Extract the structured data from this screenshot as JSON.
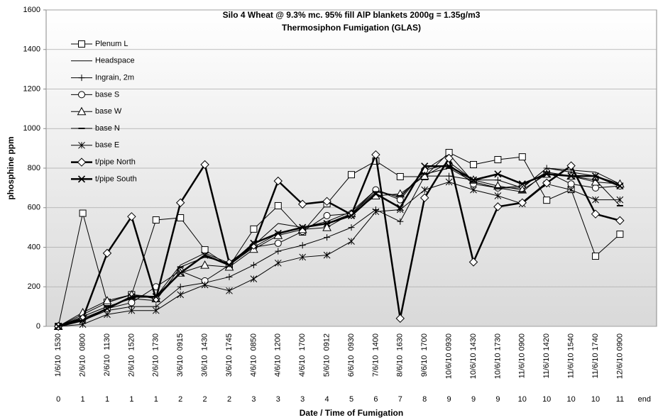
{
  "chart_data": {
    "type": "line",
    "title": "Silo 4 Wheat @ 9.3% mc. 95% fill AlP blankets 2000g = 1.35g/m3",
    "subtitle": "Thermosiphon Fumigation (GLAS)",
    "y_label": "phosphine ppm",
    "x_label": "Date / Time of Fumigation",
    "categories": [
      "1/6/10  1530",
      "2/6/10  0800",
      "2/6/10  1130",
      "2/6/10  1520",
      "2/6/10  1730",
      "3/6/10  0915",
      "3/6/10  1430",
      "3/6/10  1745",
      "4/6/10  0850",
      "4/6/10  1200",
      "4/6/10  1700",
      "5/6/10  0912",
      "6/6/10  0930",
      "7/6/10  1400",
      "8/6/10  1630",
      "9/6/10  1700",
      "10/6/10 0930",
      "10/6/10 1430",
      "10/6/10 1730",
      "11/6/10 0900",
      "11/6/10 1420",
      "11/6/10 1540",
      "11/6/10 1740",
      "12/6/10 0900",
      null
    ],
    "day_labels": [
      "0",
      "1",
      "1",
      "1",
      "1",
      "2",
      "2",
      "2",
      "3",
      "3",
      "3",
      "4",
      "5",
      "6",
      "7",
      "8",
      "9",
      "9",
      "9",
      "10",
      "10",
      "10",
      "10",
      "11",
      "end"
    ],
    "ylim": [
      0,
      1600
    ],
    "yticks": [
      0,
      200,
      400,
      600,
      800,
      1000,
      1200,
      1400,
      1600
    ],
    "grid": true,
    "legend": "top-left",
    "series": [
      {
        "name": "Plenum L",
        "color": "#000000",
        "marker": "square",
        "line_width": 1,
        "values": [
          0,
          572,
          122,
          160,
          538,
          549,
          387,
          305,
          492,
          610,
          477,
          620,
          767,
          836,
          757,
          757,
          879,
          818,
          843,
          857,
          638,
          692,
          355,
          466,
          null
        ]
      },
      {
        "name": "Headspace",
        "color": "#000000",
        "marker": "none",
        "line_width": 1,
        "values": [
          0,
          60,
          120,
          160,
          150,
          310,
          370,
          320,
          410,
          520,
          500,
          530,
          580,
          690,
          650,
          790,
          870,
          730,
          700,
          700,
          800,
          790,
          780,
          720,
          null
        ]
      },
      {
        "name": "Ingrain, 2m",
        "color": "#000000",
        "marker": "plus",
        "line_width": 1,
        "values": [
          0,
          30,
          80,
          100,
          100,
          200,
          220,
          250,
          310,
          380,
          410,
          450,
          500,
          590,
          530,
          760,
          760,
          740,
          740,
          700,
          800,
          780,
          760,
          720,
          null
        ]
      },
      {
        "name": "base S",
        "color": "#000000",
        "marker": "circle",
        "line_width": 1,
        "values": [
          0,
          40,
          90,
          120,
          200,
          280,
          230,
          310,
          400,
          420,
          480,
          560,
          570,
          690,
          640,
          790,
          820,
          720,
          700,
          710,
          780,
          720,
          700,
          710,
          null
        ]
      },
      {
        "name": "base W",
        "color": "#000000",
        "marker": "triangle",
        "line_width": 1,
        "values": [
          0,
          70,
          130,
          160,
          140,
          270,
          310,
          300,
          390,
          460,
          490,
          500,
          570,
          660,
          670,
          760,
          830,
          740,
          710,
          690,
          770,
          760,
          730,
          720,
          null
        ]
      },
      {
        "name": "base N",
        "color": "#000000",
        "marker": "dash",
        "line_width": 1,
        "values": [
          0,
          50,
          100,
          140,
          130,
          300,
          350,
          320,
          400,
          470,
          500,
          520,
          570,
          680,
          660,
          770,
          800,
          730,
          700,
          680,
          780,
          760,
          740,
          610,
          null
        ]
      },
      {
        "name": "base E",
        "color": "#000000",
        "marker": "asterisk",
        "line_width": 1,
        "values": [
          0,
          10,
          60,
          80,
          80,
          160,
          210,
          180,
          240,
          320,
          350,
          360,
          430,
          580,
          590,
          690,
          730,
          690,
          660,
          620,
          720,
          690,
          640,
          640,
          null
        ]
      },
      {
        "name": "t/pipe North",
        "color": "#000000",
        "marker": "diamond",
        "line_width": 2.5,
        "values": [
          0,
          40,
          370,
          555,
          140,
          625,
          818,
          320,
          410,
          735,
          618,
          632,
          565,
          868,
          40,
          650,
          850,
          325,
          605,
          625,
          725,
          812,
          568,
          535,
          null
        ]
      },
      {
        "name": "t/pipe South",
        "color": "#000000",
        "marker": "cross",
        "line_width": 2.5,
        "values": [
          0,
          30,
          90,
          150,
          150,
          270,
          360,
          310,
          420,
          470,
          500,
          520,
          560,
          670,
          600,
          810,
          810,
          740,
          770,
          720,
          770,
          760,
          760,
          710,
          null
        ]
      }
    ]
  }
}
